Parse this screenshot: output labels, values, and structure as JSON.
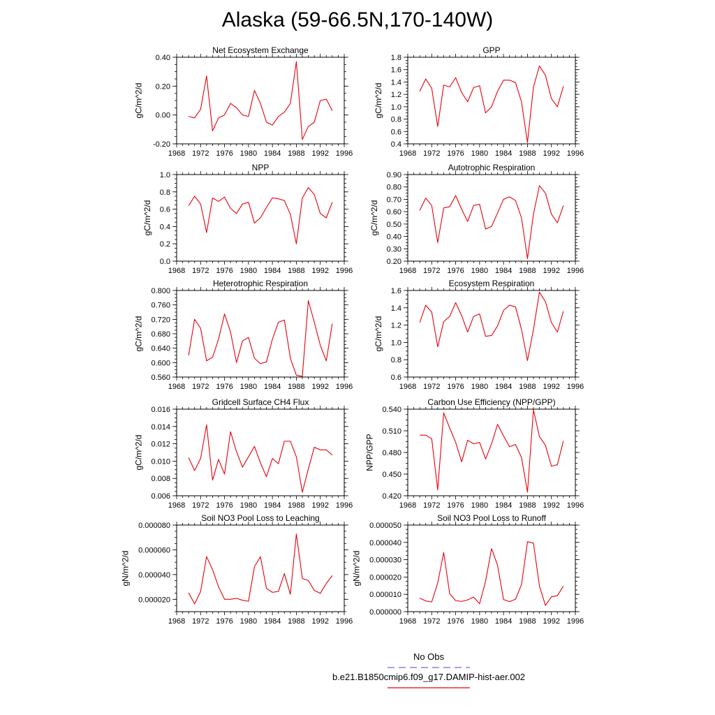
{
  "title": "Alaska (59-66.5N,170-140W)",
  "legend": {
    "obs_label": "No Obs",
    "obs_color": "#6a6ad8",
    "model_label": "b.e21.B1850cmip6.f09_g17.DAMIP-hist-aer.002",
    "model_color": "#e8000b"
  },
  "chart_data": [
    {
      "type": "line",
      "title": "Net Ecosystem Exchange",
      "ylabel": "gC/m^2/d",
      "xlim": [
        1968,
        1996
      ],
      "xticks": [
        1968,
        1972,
        1976,
        1980,
        1984,
        1988,
        1992,
        1996
      ],
      "ylim": [
        -0.2,
        0.4
      ],
      "yticks": [
        "-0.20",
        "0.00",
        "0.20",
        "0.40"
      ],
      "x": [
        1970,
        1971,
        1972,
        1973,
        1974,
        1975,
        1976,
        1977,
        1978,
        1979,
        1980,
        1981,
        1982,
        1983,
        1984,
        1985,
        1986,
        1987,
        1988,
        1989,
        1990,
        1991,
        1992,
        1993,
        1994
      ],
      "series": [
        {
          "values": [
            -0.01,
            -0.02,
            0.04,
            0.27,
            -0.11,
            -0.02,
            0.0,
            0.08,
            0.05,
            0.0,
            -0.01,
            0.17,
            0.08,
            -0.05,
            -0.07,
            -0.01,
            0.02,
            0.08,
            0.37,
            -0.17,
            -0.08,
            -0.05,
            0.1,
            0.11,
            0.03
          ]
        }
      ]
    },
    {
      "type": "line",
      "title": "GPP",
      "ylabel": "gC/m^2/d",
      "xlim": [
        1968,
        1996
      ],
      "xticks": [
        1968,
        1972,
        1976,
        1980,
        1984,
        1988,
        1992,
        1996
      ],
      "ylim": [
        0.4,
        1.8
      ],
      "yticks": [
        "0.4",
        "0.6",
        "0.8",
        "1.0",
        "1.2",
        "1.4",
        "1.6",
        "1.8"
      ],
      "x": [
        1970,
        1971,
        1972,
        1973,
        1974,
        1975,
        1976,
        1977,
        1978,
        1979,
        1980,
        1981,
        1982,
        1983,
        1984,
        1985,
        1986,
        1987,
        1988,
        1989,
        1990,
        1991,
        1992,
        1993,
        1994
      ],
      "series": [
        {
          "values": [
            1.25,
            1.45,
            1.3,
            0.68,
            1.35,
            1.32,
            1.47,
            1.23,
            1.08,
            1.31,
            1.34,
            0.9,
            1.0,
            1.25,
            1.43,
            1.43,
            1.39,
            1.08,
            0.42,
            1.32,
            1.66,
            1.51,
            1.13,
            1.0,
            1.33
          ]
        }
      ]
    },
    {
      "type": "line",
      "title": "NPP",
      "ylabel": "gC/m^2/d",
      "xlim": [
        1968,
        1996
      ],
      "xticks": [
        1968,
        1972,
        1976,
        1980,
        1984,
        1988,
        1992,
        1996
      ],
      "ylim": [
        0.0,
        1.0
      ],
      "yticks": [
        "0.0",
        "0.2",
        "0.4",
        "0.6",
        "0.8",
        "1.0"
      ],
      "x": [
        1970,
        1971,
        1972,
        1973,
        1974,
        1975,
        1976,
        1977,
        1978,
        1979,
        1980,
        1981,
        1982,
        1983,
        1984,
        1985,
        1986,
        1987,
        1988,
        1989,
        1990,
        1991,
        1992,
        1993,
        1994
      ],
      "series": [
        {
          "values": [
            0.64,
            0.75,
            0.66,
            0.33,
            0.73,
            0.69,
            0.74,
            0.61,
            0.55,
            0.66,
            0.68,
            0.44,
            0.5,
            0.62,
            0.73,
            0.72,
            0.7,
            0.54,
            0.2,
            0.73,
            0.85,
            0.77,
            0.55,
            0.5,
            0.68
          ]
        }
      ]
    },
    {
      "type": "line",
      "title": "Autotrophic Respiration",
      "ylabel": "gC/m^2/d",
      "xlim": [
        1968,
        1996
      ],
      "xticks": [
        1968,
        1972,
        1976,
        1980,
        1984,
        1988,
        1992,
        1996
      ],
      "ylim": [
        0.2,
        0.9
      ],
      "yticks": [
        "0.20",
        "0.30",
        "0.40",
        "0.50",
        "0.60",
        "0.70",
        "0.80",
        "0.90"
      ],
      "x": [
        1970,
        1971,
        1972,
        1973,
        1974,
        1975,
        1976,
        1977,
        1978,
        1979,
        1980,
        1981,
        1982,
        1983,
        1984,
        1985,
        1986,
        1987,
        1988,
        1989,
        1990,
        1991,
        1992,
        1993,
        1994
      ],
      "series": [
        {
          "values": [
            0.61,
            0.71,
            0.65,
            0.35,
            0.63,
            0.64,
            0.73,
            0.62,
            0.52,
            0.65,
            0.66,
            0.46,
            0.48,
            0.59,
            0.7,
            0.72,
            0.69,
            0.55,
            0.22,
            0.58,
            0.81,
            0.75,
            0.58,
            0.51,
            0.65
          ]
        }
      ]
    },
    {
      "type": "line",
      "title": "Heterotrophic Respiration",
      "ylabel": "gC/m^2/d",
      "xlim": [
        1968,
        1996
      ],
      "xticks": [
        1968,
        1972,
        1976,
        1980,
        1984,
        1988,
        1992,
        1996
      ],
      "ylim": [
        0.56,
        0.8
      ],
      "yticks": [
        "0.560",
        "0.600",
        "0.640",
        "0.680",
        "0.720",
        "0.760",
        "0.800"
      ],
      "x": [
        1970,
        1971,
        1972,
        1973,
        1974,
        1975,
        1976,
        1977,
        1978,
        1979,
        1980,
        1981,
        1982,
        1983,
        1984,
        1985,
        1986,
        1987,
        1988,
        1989,
        1990,
        1991,
        1992,
        1993,
        1994
      ],
      "series": [
        {
          "values": [
            0.62,
            0.72,
            0.695,
            0.605,
            0.615,
            0.665,
            0.735,
            0.685,
            0.6,
            0.66,
            0.67,
            0.612,
            0.597,
            0.602,
            0.665,
            0.712,
            0.718,
            0.612,
            0.565,
            0.562,
            0.772,
            0.712,
            0.648,
            0.605,
            0.708
          ]
        }
      ]
    },
    {
      "type": "line",
      "title": "Ecosystem Respiration",
      "ylabel": "gC/m^2/d",
      "xlim": [
        1968,
        1996
      ],
      "xticks": [
        1968,
        1972,
        1976,
        1980,
        1984,
        1988,
        1992,
        1996
      ],
      "ylim": [
        0.6,
        1.6
      ],
      "yticks": [
        "0.6",
        "0.8",
        "1.0",
        "1.2",
        "1.4",
        "1.6"
      ],
      "x": [
        1970,
        1971,
        1972,
        1973,
        1974,
        1975,
        1976,
        1977,
        1978,
        1979,
        1980,
        1981,
        1982,
        1983,
        1984,
        1985,
        1986,
        1987,
        1988,
        1989,
        1990,
        1991,
        1992,
        1993,
        1994
      ],
      "series": [
        {
          "values": [
            1.23,
            1.43,
            1.35,
            0.95,
            1.24,
            1.3,
            1.46,
            1.31,
            1.12,
            1.3,
            1.33,
            1.07,
            1.08,
            1.19,
            1.37,
            1.43,
            1.41,
            1.15,
            0.79,
            1.15,
            1.58,
            1.47,
            1.23,
            1.12,
            1.36
          ]
        }
      ]
    },
    {
      "type": "line",
      "title": "Gridcell Surface CH4 Flux",
      "ylabel": "gC/m^2/d",
      "xlim": [
        1968,
        1996
      ],
      "xticks": [
        1968,
        1972,
        1976,
        1980,
        1984,
        1988,
        1992,
        1996
      ],
      "ylim": [
        0.006,
        0.016
      ],
      "yticks": [
        "0.006",
        "0.008",
        "0.010",
        "0.012",
        "0.014",
        "0.016"
      ],
      "x": [
        1970,
        1971,
        1972,
        1973,
        1974,
        1975,
        1976,
        1977,
        1978,
        1979,
        1980,
        1981,
        1982,
        1983,
        1984,
        1985,
        1986,
        1987,
        1988,
        1989,
        1990,
        1991,
        1992,
        1993,
        1994
      ],
      "series": [
        {
          "values": [
            0.0104,
            0.0089,
            0.0103,
            0.0142,
            0.0078,
            0.0102,
            0.0085,
            0.0134,
            0.0111,
            0.0093,
            0.0105,
            0.0117,
            0.0098,
            0.0082,
            0.0103,
            0.0097,
            0.0123,
            0.0123,
            0.0105,
            0.0064,
            0.0091,
            0.0116,
            0.0113,
            0.0113,
            0.0107
          ]
        }
      ]
    },
    {
      "type": "line",
      "title": "Carbon Use Efficiency (NPP/GPP)",
      "ylabel": "NPP/GPP",
      "xlim": [
        1968,
        1996
      ],
      "xticks": [
        1968,
        1972,
        1976,
        1980,
        1984,
        1988,
        1992,
        1996
      ],
      "ylim": [
        0.42,
        0.54
      ],
      "yticks": [
        "0.420",
        "0.450",
        "0.480",
        "0.510",
        "0.540"
      ],
      "x": [
        1970,
        1971,
        1972,
        1973,
        1974,
        1975,
        1976,
        1977,
        1978,
        1979,
        1980,
        1981,
        1982,
        1983,
        1984,
        1985,
        1986,
        1987,
        1988,
        1989,
        1990,
        1991,
        1992,
        1993,
        1994
      ],
      "series": [
        {
          "values": [
            0.504,
            0.504,
            0.499,
            0.428,
            0.535,
            0.514,
            0.494,
            0.467,
            0.497,
            0.492,
            0.494,
            0.471,
            0.492,
            0.519,
            0.503,
            0.488,
            0.491,
            0.473,
            0.425,
            0.539,
            0.502,
            0.49,
            0.461,
            0.463,
            0.496
          ]
        }
      ]
    },
    {
      "type": "line",
      "title": "Soil NO3 Pool Loss to Leaching",
      "ylabel": "gN/m^2/d",
      "xlim": [
        1968,
        1996
      ],
      "xticks": [
        1968,
        1972,
        1976,
        1980,
        1984,
        1988,
        1992,
        1996
      ],
      "ylim": [
        1e-05,
        8e-05
      ],
      "yticks": [
        "0.000020",
        "0.000040",
        "0.000060",
        "0.000080"
      ],
      "x": [
        1970,
        1971,
        1972,
        1973,
        1974,
        1975,
        1976,
        1977,
        1978,
        1979,
        1980,
        1981,
        1982,
        1983,
        1984,
        1985,
        1986,
        1987,
        1988,
        1989,
        1990,
        1991,
        1992,
        1993,
        1994
      ],
      "series": [
        {
          "values": [
            2.52e-05,
            1.63e-05,
            2.63e-05,
            5.45e-05,
            4.4e-05,
            3e-05,
            2e-05,
            2e-05,
            2.08e-05,
            1.92e-05,
            1.84e-05,
            4.64e-05,
            5.44e-05,
            2.88e-05,
            2.56e-05,
            2.64e-05,
            4.08e-05,
            2.4e-05,
            7.28e-05,
            3.68e-05,
            3.52e-05,
            2.72e-05,
            2.48e-05,
            3.28e-05,
            3.92e-05
          ]
        }
      ]
    },
    {
      "type": "line",
      "title": "Soil NO3 Pool Loss to Runoff",
      "ylabel": "gN/m^2/d",
      "xlim": [
        1968,
        1996
      ],
      "xticks": [
        1968,
        1972,
        1976,
        1980,
        1984,
        1988,
        1992,
        1996
      ],
      "ylim": [
        0.0,
        5e-05
      ],
      "yticks": [
        "0.000000",
        "0.000010",
        "0.000020",
        "0.000030",
        "0.000040",
        "0.000050"
      ],
      "x": [
        1970,
        1971,
        1972,
        1973,
        1974,
        1975,
        1976,
        1977,
        1978,
        1979,
        1980,
        1981,
        1982,
        1983,
        1984,
        1985,
        1986,
        1987,
        1988,
        1989,
        1990,
        1991,
        1992,
        1993,
        1994
      ],
      "series": [
        {
          "values": [
            7.8e-06,
            6.2e-06,
            5.6e-06,
            1.65e-05,
            3.42e-05,
            1.04e-05,
            6.4e-06,
            5.9e-06,
            6.8e-06,
            8.4e-06,
            4.6e-06,
            1.76e-05,
            3.64e-05,
            2.68e-05,
            7e-06,
            5.8e-06,
            7.2e-06,
            1.56e-05,
            4.04e-05,
            3.96e-05,
            1.48e-05,
            3.6e-06,
            8.6e-06,
            9.2e-06,
            1.48e-05
          ]
        }
      ]
    }
  ]
}
